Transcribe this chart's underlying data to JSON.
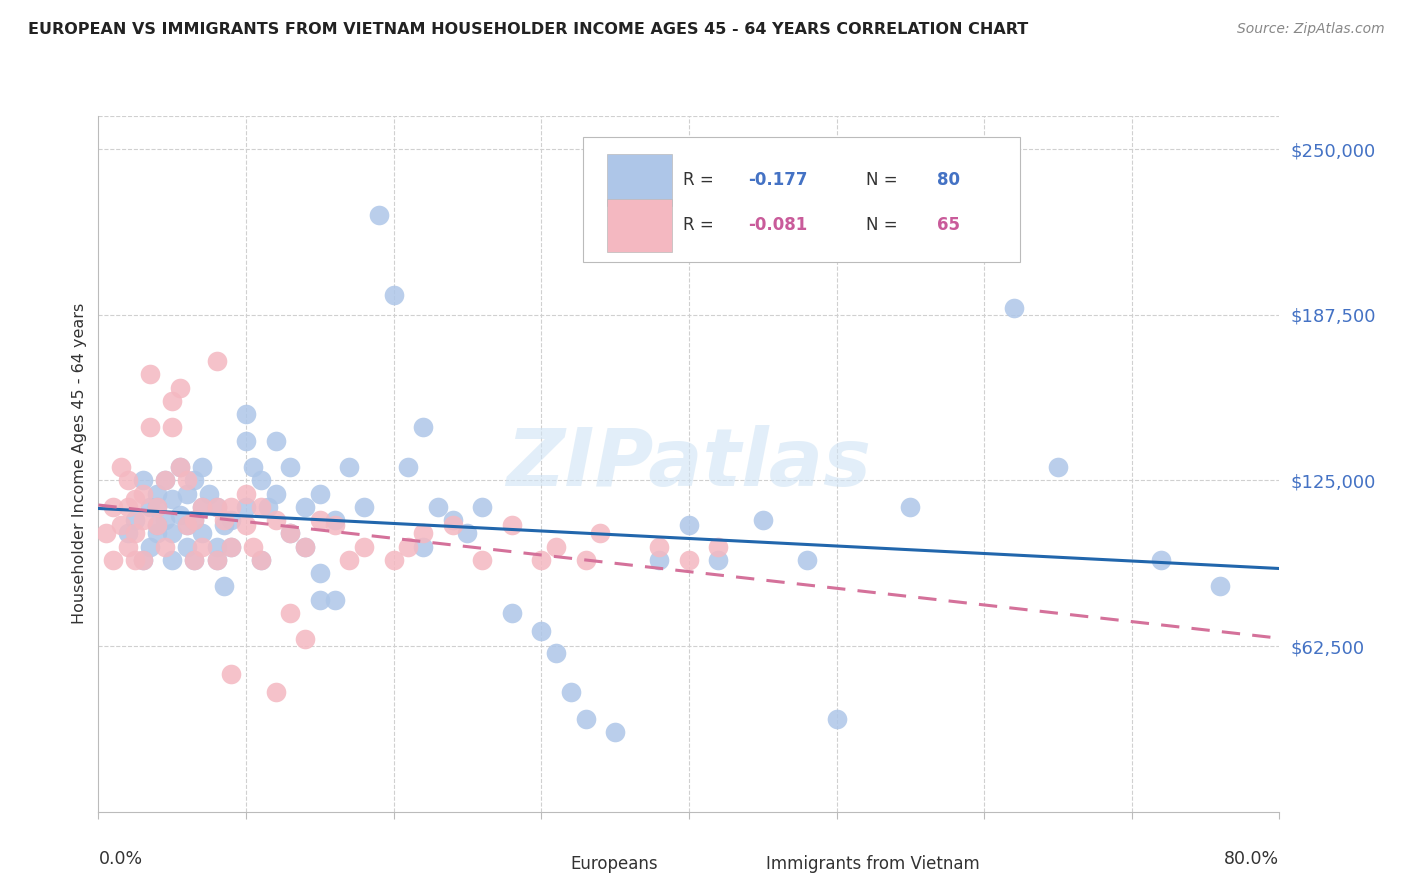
{
  "title": "EUROPEAN VS IMMIGRANTS FROM VIETNAM HOUSEHOLDER INCOME AGES 45 - 64 YEARS CORRELATION CHART",
  "source": "Source: ZipAtlas.com",
  "ylabel": "Householder Income Ages 45 - 64 years",
  "ytick_labels": [
    "$62,500",
    "$125,000",
    "$187,500",
    "$250,000"
  ],
  "ytick_values": [
    62500,
    125000,
    187500,
    250000
  ],
  "ymin": 0,
  "ymax": 262500,
  "xmin": 0.0,
  "xmax": 0.8,
  "blue_color": "#aec6e8",
  "pink_color": "#f4b8c1",
  "trendline_blue": "#2166ac",
  "trendline_pink": "#d4719a",
  "blue_scatter_x": [
    0.02,
    0.025,
    0.03,
    0.03,
    0.035,
    0.035,
    0.04,
    0.04,
    0.04,
    0.04,
    0.045,
    0.045,
    0.05,
    0.05,
    0.05,
    0.055,
    0.055,
    0.06,
    0.06,
    0.06,
    0.065,
    0.065,
    0.065,
    0.07,
    0.07,
    0.07,
    0.075,
    0.08,
    0.08,
    0.08,
    0.085,
    0.085,
    0.09,
    0.09,
    0.1,
    0.1,
    0.1,
    0.105,
    0.11,
    0.11,
    0.115,
    0.12,
    0.12,
    0.13,
    0.13,
    0.14,
    0.14,
    0.15,
    0.15,
    0.15,
    0.16,
    0.16,
    0.17,
    0.18,
    0.19,
    0.2,
    0.21,
    0.22,
    0.22,
    0.23,
    0.24,
    0.25,
    0.26,
    0.28,
    0.3,
    0.31,
    0.32,
    0.33,
    0.35,
    0.38,
    0.4,
    0.42,
    0.45,
    0.48,
    0.5,
    0.55,
    0.62,
    0.65,
    0.72,
    0.76
  ],
  "blue_scatter_y": [
    105000,
    110000,
    95000,
    125000,
    100000,
    115000,
    108000,
    115000,
    120000,
    105000,
    110000,
    125000,
    118000,
    105000,
    95000,
    112000,
    130000,
    108000,
    100000,
    120000,
    125000,
    110000,
    95000,
    115000,
    105000,
    130000,
    120000,
    115000,
    95000,
    100000,
    108000,
    85000,
    110000,
    100000,
    150000,
    140000,
    115000,
    130000,
    125000,
    95000,
    115000,
    140000,
    120000,
    130000,
    105000,
    115000,
    100000,
    120000,
    90000,
    80000,
    80000,
    110000,
    130000,
    115000,
    225000,
    195000,
    130000,
    145000,
    100000,
    115000,
    110000,
    105000,
    115000,
    75000,
    68000,
    60000,
    45000,
    35000,
    30000,
    95000,
    108000,
    95000,
    110000,
    95000,
    35000,
    115000,
    190000,
    130000,
    95000,
    85000
  ],
  "pink_scatter_x": [
    0.005,
    0.01,
    0.01,
    0.015,
    0.015,
    0.02,
    0.02,
    0.02,
    0.025,
    0.025,
    0.025,
    0.03,
    0.03,
    0.03,
    0.035,
    0.035,
    0.04,
    0.04,
    0.045,
    0.045,
    0.05,
    0.05,
    0.055,
    0.055,
    0.06,
    0.06,
    0.065,
    0.065,
    0.07,
    0.07,
    0.08,
    0.08,
    0.085,
    0.09,
    0.09,
    0.1,
    0.1,
    0.105,
    0.11,
    0.11,
    0.12,
    0.13,
    0.14,
    0.15,
    0.16,
    0.17,
    0.18,
    0.2,
    0.21,
    0.22,
    0.24,
    0.26,
    0.28,
    0.3,
    0.31,
    0.33,
    0.34,
    0.38,
    0.4,
    0.42,
    0.13,
    0.14,
    0.09,
    0.12,
    0.08
  ],
  "pink_scatter_y": [
    105000,
    115000,
    95000,
    130000,
    108000,
    115000,
    100000,
    125000,
    118000,
    105000,
    95000,
    110000,
    120000,
    95000,
    165000,
    145000,
    108000,
    115000,
    125000,
    100000,
    155000,
    145000,
    160000,
    130000,
    125000,
    108000,
    110000,
    95000,
    115000,
    100000,
    115000,
    95000,
    110000,
    100000,
    115000,
    108000,
    120000,
    100000,
    115000,
    95000,
    110000,
    105000,
    100000,
    110000,
    108000,
    95000,
    100000,
    95000,
    100000,
    105000,
    108000,
    95000,
    108000,
    95000,
    100000,
    95000,
    105000,
    100000,
    95000,
    100000,
    75000,
    65000,
    52000,
    45000,
    170000
  ]
}
